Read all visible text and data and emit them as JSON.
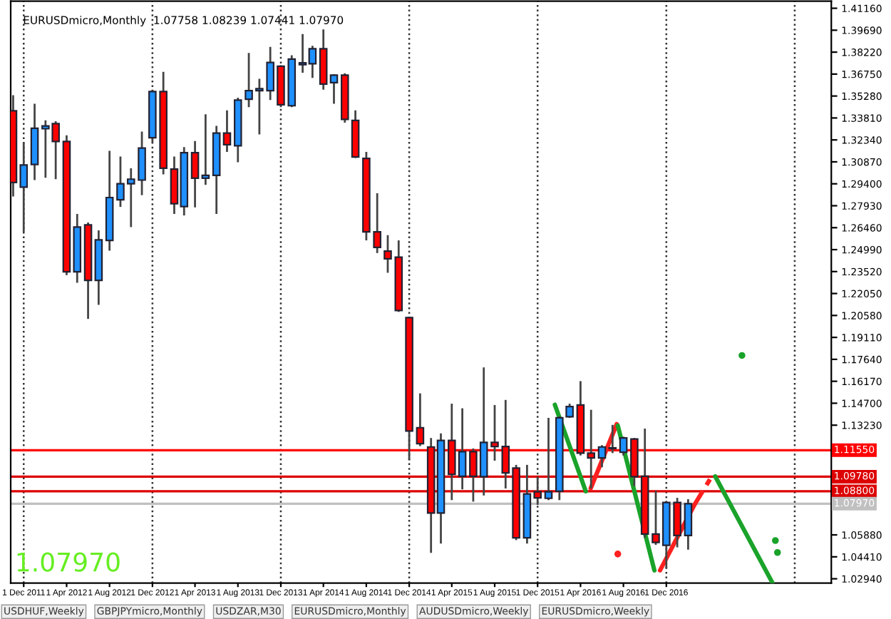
{
  "chart_data": {
    "type": "candlestick",
    "title": "EURUSDmicro,Monthly  1.07758 1.08239 1.07441 1.07970",
    "x": [
      "2011-11",
      "2011-12",
      "2012-01",
      "2012-02",
      "2012-03",
      "2012-04",
      "2012-05",
      "2012-06",
      "2012-07",
      "2012-08",
      "2012-09",
      "2012-10",
      "2012-11",
      "2012-12",
      "2013-01",
      "2013-02",
      "2013-03",
      "2013-04",
      "2013-05",
      "2013-06",
      "2013-07",
      "2013-08",
      "2013-09",
      "2013-10",
      "2013-11",
      "2013-12",
      "2014-01",
      "2014-02",
      "2014-03",
      "2014-04",
      "2014-05",
      "2014-06",
      "2014-07",
      "2014-08",
      "2014-09",
      "2014-10",
      "2014-11",
      "2014-12",
      "2015-01",
      "2015-02",
      "2015-03",
      "2015-04",
      "2015-05",
      "2015-06",
      "2015-07",
      "2015-08",
      "2015-09",
      "2015-10",
      "2015-11",
      "2015-12",
      "2016-01",
      "2016-02",
      "2016-03",
      "2016-04",
      "2016-05",
      "2016-06",
      "2016-07",
      "2016-08",
      "2016-09",
      "2016-10",
      "2016-11",
      "2016-12",
      "2017-01",
      "2017-02"
    ],
    "ohlc": [
      [
        1.3429,
        1.3533,
        1.2855,
        1.2949
      ],
      [
        1.2918,
        1.3217,
        1.2618,
        1.3066
      ],
      [
        1.3069,
        1.3476,
        1.2965,
        1.3312
      ],
      [
        1.3309,
        1.3365,
        1.2981,
        1.3328
      ],
      [
        1.3343,
        1.3359,
        1.2971,
        1.3224
      ],
      [
        1.3224,
        1.3265,
        1.2328,
        1.235
      ],
      [
        1.235,
        1.2738,
        1.2277,
        1.265
      ],
      [
        1.2665,
        1.2681,
        1.2035,
        1.2293
      ],
      [
        1.2293,
        1.2628,
        1.2129,
        1.2564
      ],
      [
        1.2561,
        1.3161,
        1.2492,
        1.2848
      ],
      [
        1.2833,
        1.3123,
        1.2785,
        1.294
      ],
      [
        1.294,
        1.3044,
        1.265,
        1.2971
      ],
      [
        1.2965,
        1.329,
        1.2864,
        1.3179
      ],
      [
        1.3249,
        1.357,
        1.3217,
        1.3558
      ],
      [
        1.3558,
        1.369,
        1.3003,
        1.3044
      ],
      [
        1.3038,
        1.3123,
        1.2738,
        1.2807
      ],
      [
        1.2788,
        1.3186,
        1.2728,
        1.3148
      ],
      [
        1.3148,
        1.3227,
        1.2782,
        1.2978
      ],
      [
        1.2978,
        1.3406,
        1.2933,
        1.2997
      ],
      [
        1.2997,
        1.3328,
        1.2738,
        1.328
      ],
      [
        1.328,
        1.3432,
        1.3154,
        1.3202
      ],
      [
        1.3195,
        1.3517,
        1.3085,
        1.3501
      ],
      [
        1.3507,
        1.3816,
        1.3454,
        1.3564
      ],
      [
        1.3564,
        1.3643,
        1.3271,
        1.3577
      ],
      [
        1.3564,
        1.3857,
        1.3501,
        1.3753
      ],
      [
        1.3728,
        1.3734,
        1.3454,
        1.347
      ],
      [
        1.3463,
        1.3801,
        1.3454,
        1.3775
      ],
      [
        1.3738,
        1.3943,
        1.3684,
        1.375
      ],
      [
        1.3744,
        1.3864,
        1.3649,
        1.3845
      ],
      [
        1.3845,
        1.3974,
        1.357,
        1.3608
      ],
      [
        1.3618,
        1.3675,
        1.3476,
        1.3668
      ],
      [
        1.3668,
        1.3681,
        1.335,
        1.3372
      ],
      [
        1.3365,
        1.3432,
        1.3113,
        1.312
      ],
      [
        1.311,
        1.3154,
        1.2561,
        1.2618
      ],
      [
        1.2618,
        1.2877,
        1.2476,
        1.2514
      ],
      [
        1.2489,
        1.2596,
        1.2344,
        1.2438
      ],
      [
        1.2448,
        1.2561,
        1.2082,
        1.2091
      ],
      [
        1.2044,
        1.205,
        1.1089,
        1.1284
      ],
      [
        1.1306,
        1.1536,
        1.1183,
        1.1199
      ],
      [
        1.1177,
        1.1237,
        1.0467,
        1.0735
      ],
      [
        1.0735,
        1.1268,
        1.053,
        1.1221
      ],
      [
        1.1221,
        1.1467,
        1.0821,
        1.0994
      ],
      [
        1.0981,
        1.1436,
        1.0893,
        1.1145
      ],
      [
        1.1145,
        1.1167,
        1.0811,
        1.0981
      ],
      [
        1.0978,
        1.171,
        1.0852,
        1.1208
      ],
      [
        1.1208,
        1.1458,
        1.1085,
        1.118
      ],
      [
        1.118,
        1.1492,
        1.0899,
        1.1003
      ],
      [
        1.1035,
        1.1057,
        1.0553,
        1.0568
      ],
      [
        1.0568,
        1.1057,
        1.053,
        1.0862
      ],
      [
        1.0877,
        1.0978,
        1.0789,
        1.0836
      ],
      [
        1.0833,
        1.1372,
        1.0821,
        1.0877
      ],
      [
        1.088,
        1.1382,
        1.0821,
        1.1372
      ],
      [
        1.1379,
        1.1467,
        1.1372,
        1.1448
      ],
      [
        1.1458,
        1.1618,
        1.112,
        1.1136
      ],
      [
        1.1136,
        1.1426,
        1.0899,
        1.1104
      ],
      [
        1.1104,
        1.1189,
        1.1041,
        1.1177
      ],
      [
        1.1167,
        1.1325,
        1.1136,
        1.1171
      ],
      [
        1.1142,
        1.1246,
        1.112,
        1.1237
      ],
      [
        1.123,
        1.1237,
        1.0915,
        1.0978
      ],
      [
        1.0981,
        1.13,
        1.0568,
        1.0594
      ],
      [
        1.0594,
        1.0884,
        1.0521,
        1.0537
      ],
      [
        1.0518,
        1.0814,
        1.0363,
        1.0805
      ],
      [
        1.0805,
        1.0836,
        1.0505,
        1.0584
      ],
      [
        1.0584,
        1.0827,
        1.0489,
        1.0797
      ]
    ],
    "colors": [
      "#ff0000",
      "#1e90ff",
      "#1e90ff",
      "#1e90ff",
      "#ff0000",
      "#ff0000",
      "#1e90ff",
      "#ff0000",
      "#1e90ff",
      "#1e90ff",
      "#1e90ff",
      "#1e90ff",
      "#1e90ff",
      "#1e90ff",
      "#ff0000",
      "#ff0000",
      "#1e90ff",
      "#ff0000",
      "#1e90ff",
      "#1e90ff",
      "#ff0000",
      "#1e90ff",
      "#1e90ff",
      "#1e90ff",
      "#1e90ff",
      "#ff0000",
      "#1e90ff",
      "#1e90ff",
      "#1e90ff",
      "#ff0000",
      "#1e90ff",
      "#ff0000",
      "#ff0000",
      "#ff0000",
      "#ff0000",
      "#ff0000",
      "#ff0000",
      "#ff0000",
      "#ff0000",
      "#ff0000",
      "#1e90ff",
      "#ff0000",
      "#1e90ff",
      "#ff0000",
      "#1e90ff",
      "#ff0000",
      "#ff0000",
      "#ff0000",
      "#1e90ff",
      "#ff0000",
      "#1e90ff",
      "#1e90ff",
      "#1e90ff",
      "#ff0000",
      "#ff0000",
      "#1e90ff",
      "#1e90ff",
      "#1e90ff",
      "#ff0000",
      "#ff0000",
      "#ff0000",
      "#1e90ff",
      "#ff0000",
      "#1e90ff"
    ],
    "series": [
      {
        "type": "line",
        "color": "#1aa32a",
        "x": [
          "2016-01-19",
          "2016-04-16"
        ],
        "values": [
          1.146,
          1.088
        ],
        "line_style": "solid"
      },
      {
        "type": "line",
        "color": "#ff2020",
        "x": [
          "2016-04-30",
          "2016-07-13"
        ],
        "values": [
          1.09,
          1.133
        ],
        "line_style": "solid"
      },
      {
        "type": "line",
        "color": "#1aa32a",
        "x": [
          "2016-07-16",
          "2016-10-28"
        ],
        "values": [
          1.132,
          1.035
        ],
        "line_style": "solid"
      },
      {
        "type": "line",
        "color": "#ff2020",
        "x": [
          "2016-11-13",
          "2017-02-19"
        ],
        "values": [
          1.035,
          1.079
        ],
        "line_style": "solid"
      },
      {
        "type": "line",
        "color": "#ff2020",
        "x": [
          "2017-02-19",
          "2017-04-04"
        ],
        "values": [
          1.079,
          1.096
        ],
        "line_style": "dashed"
      },
      {
        "type": "line",
        "color": "#1aa32a",
        "x": [
          "2017-04-19",
          "2017-09-28"
        ],
        "values": [
          1.098,
          1.027
        ],
        "line_style": "solid"
      },
      {
        "type": "scatter",
        "color": "#1aa32a",
        "x": [
          "2017-07-04",
          "2017-10-07",
          "2017-10-13"
        ],
        "values": [
          1.179,
          1.055,
          1.047
        ]
      },
      {
        "type": "scatter",
        "color": "#ff2020",
        "x": [
          "2016-07-16"
        ],
        "values": [
          1.046
        ]
      }
    ],
    "xlim": [
      "2011-10-25",
      "2018-03-15"
    ],
    "xticks": [
      {
        "value": "2011-12-01",
        "label": "1 Dec 2011"
      },
      {
        "value": "2012-04-01",
        "label": "1 Apr 2012"
      },
      {
        "value": "2012-08-01",
        "label": "1 Aug 2012"
      },
      {
        "value": "2012-12-01",
        "label": "1 Dec 2012"
      },
      {
        "value": "2013-04-01",
        "label": "1 Apr 2013"
      },
      {
        "value": "2013-08-01",
        "label": "1 Aug 2013"
      },
      {
        "value": "2013-12-01",
        "label": "1 Dec 2013"
      },
      {
        "value": "2014-04-01",
        "label": "1 Apr 2014"
      },
      {
        "value": "2014-08-01",
        "label": "1 Aug 2014"
      },
      {
        "value": "2014-12-01",
        "label": "1 Dec 2014"
      },
      {
        "value": "2015-04-01",
        "label": "1 Apr 2015"
      },
      {
        "value": "2015-08-01",
        "label": "1 Aug 2015"
      },
      {
        "value": "2015-12-01",
        "label": "1 Dec 2015"
      },
      {
        "value": "2016-04-01",
        "label": "1 Apr 2016"
      },
      {
        "value": "2016-08-01",
        "label": "1 Aug 2016"
      },
      {
        "value": "2016-12-01",
        "label": "1 Dec 2016"
      }
    ],
    "ylim": [
      1.0265,
      1.4163
    ],
    "yticks": [
      {
        "value": 1.4116,
        "label": "1.41160"
      },
      {
        "value": 1.3969,
        "label": "1.39690"
      },
      {
        "value": 1.3822,
        "label": "1.38220"
      },
      {
        "value": 1.3675,
        "label": "1.36750"
      },
      {
        "value": 1.3528,
        "label": "1.35280"
      },
      {
        "value": 1.3381,
        "label": "1.33810"
      },
      {
        "value": 1.3234,
        "label": "1.32340"
      },
      {
        "value": 1.3087,
        "label": "1.30870"
      },
      {
        "value": 1.294,
        "label": "1.29400"
      },
      {
        "value": 1.2793,
        "label": "1.27930"
      },
      {
        "value": 1.2646,
        "label": "1.26460"
      },
      {
        "value": 1.2499,
        "label": "1.24990"
      },
      {
        "value": 1.2352,
        "label": "1.23520"
      },
      {
        "value": 1.2205,
        "label": "1.22050"
      },
      {
        "value": 1.2058,
        "label": "1.20580"
      },
      {
        "value": 1.1911,
        "label": "1.19110"
      },
      {
        "value": 1.1764,
        "label": "1.17640"
      },
      {
        "value": 1.1617,
        "label": "1.16170"
      },
      {
        "value": 1.147,
        "label": "1.14700"
      },
      {
        "value": 1.1323,
        "label": "1.13230"
      },
      {
        "value": 1.0588,
        "label": "1.05880"
      },
      {
        "value": 1.0441,
        "label": "1.04410"
      },
      {
        "value": 1.0294,
        "label": "1.02940"
      }
    ],
    "ref_lines": [
      {
        "axis": "y",
        "value": 1.1155,
        "label": "1.11550",
        "color": "#ff0000",
        "line_style": "solid"
      },
      {
        "axis": "y",
        "value": 1.0978,
        "label": "1.09780",
        "color": "#dd0000",
        "line_style": "solid"
      },
      {
        "axis": "y",
        "value": 1.088,
        "label": "1.08800",
        "color": "#dd0000",
        "line_style": "solid"
      },
      {
        "axis": "y",
        "value": 1.0797,
        "label": "1.07970",
        "color": "#c0c0c0",
        "line_style": "solid"
      },
      {
        "axis": "x",
        "value": "2011-12-01",
        "color": "#333333",
        "line_style": "dotted"
      },
      {
        "axis": "x",
        "value": "2012-12-01",
        "color": "#333333",
        "line_style": "dotted"
      },
      {
        "axis": "x",
        "value": "2013-12-01",
        "color": "#333333",
        "line_style": "dotted"
      },
      {
        "axis": "x",
        "value": "2014-12-01",
        "color": "#333333",
        "line_style": "dotted"
      },
      {
        "axis": "x",
        "value": "2015-12-01",
        "color": "#333333",
        "line_style": "dotted"
      },
      {
        "axis": "x",
        "value": "2016-12-01",
        "color": "#333333",
        "line_style": "dotted"
      },
      {
        "axis": "x",
        "value": "2017-12-01",
        "color": "#333333",
        "line_style": "dotted"
      }
    ],
    "annotations": [
      "1.07970",
      "USDHUF,Weekly",
      "GBPJPYmicro,Monthly",
      "USDZAR,M30",
      "EURUSDmicro,Monthly",
      "AUDUSDmicro,Weekly",
      "EURUSDmicro,Weekly"
    ],
    "grid": false,
    "legend": false
  }
}
